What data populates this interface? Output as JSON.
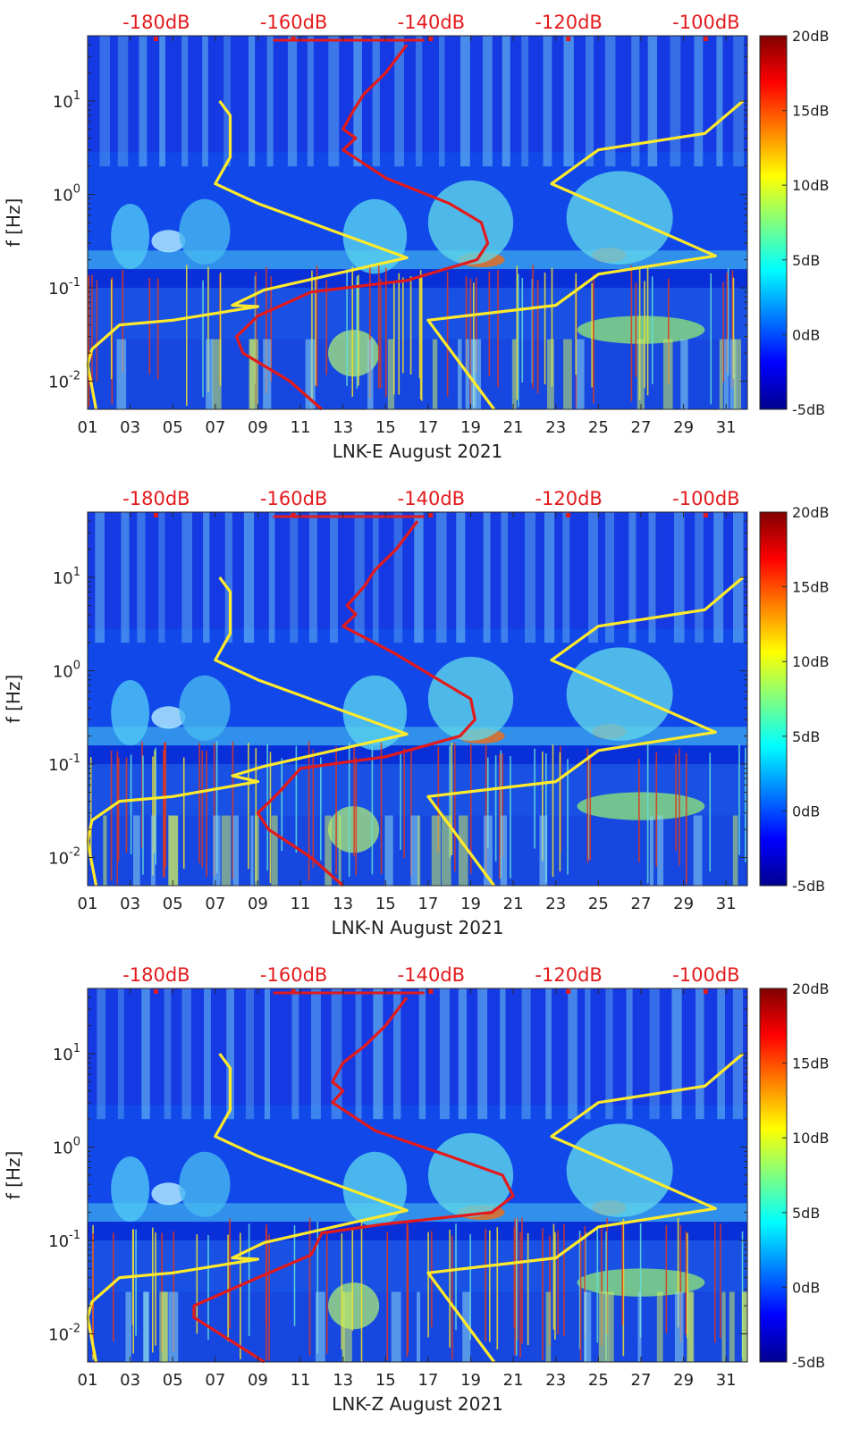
{
  "chart_data": [
    {
      "type": "heatmap",
      "subtitle": "LNK-E August 2021",
      "ylabel": "f [Hz]",
      "x_tick_labels": [
        "01",
        "03",
        "05",
        "07",
        "09",
        "11",
        "13",
        "15",
        "17",
        "19",
        "21",
        "23",
        "25",
        "27",
        "29",
        "31"
      ],
      "xlim": [
        1,
        32
      ],
      "y_scale": "log",
      "ylim": [
        0.005,
        50
      ],
      "y_tick_labels": [
        "10^1",
        "10^0",
        "10^-1",
        "10^-2"
      ],
      "top_axis_labels": [
        "-180dB",
        "-160dB",
        "-140dB",
        "-120dB",
        "-100dB"
      ],
      "top_axis_values": [
        -180,
        -160,
        -140,
        -120,
        -100
      ],
      "top_axis_range": [
        -190,
        -94
      ],
      "colorbar": {
        "labels": [
          "20dB",
          "15dB",
          "10dB",
          "5dB",
          "0dB",
          "-5dB"
        ],
        "range": [
          -5,
          20
        ]
      },
      "series": [
        {
          "color": "#ffea2b",
          "points": [
            [
              7.2,
              10
            ],
            [
              7.7,
              7
            ],
            [
              7.7,
              2.5
            ],
            [
              7.0,
              1.3
            ],
            [
              9.0,
              0.8
            ],
            [
              16.0,
              0.21
            ],
            [
              9.3,
              0.095
            ],
            [
              7.8,
              0.065
            ],
            [
              9.0,
              0.063
            ],
            [
              5.0,
              0.045
            ],
            [
              2.5,
              0.04
            ],
            [
              1.2,
              0.022
            ],
            [
              1.0,
              0.015
            ],
            [
              1.4,
              0.005
            ]
          ]
        },
        {
          "color": "#ffea2b",
          "points": [
            [
              31.8,
              10
            ],
            [
              30.0,
              4.5
            ],
            [
              25.0,
              3.0
            ],
            [
              22.8,
              1.3
            ],
            [
              30.5,
              0.22
            ],
            [
              25.0,
              0.14
            ],
            [
              23.0,
              0.065
            ],
            [
              17.0,
              0.045
            ],
            [
              20.1,
              0.005
            ]
          ]
        },
        {
          "color": "#e31a1c",
          "points": [
            [
              16.0,
              40
            ],
            [
              15.0,
              20
            ],
            [
              14.0,
              12
            ],
            [
              13.5,
              8
            ],
            [
              13.0,
              5
            ],
            [
              13.6,
              4
            ],
            [
              13.0,
              3
            ],
            [
              15.0,
              1.5
            ],
            [
              18.0,
              0.8
            ],
            [
              19.5,
              0.5
            ],
            [
              19.8,
              0.3
            ],
            [
              19.3,
              0.2
            ],
            [
              16.0,
              0.12
            ],
            [
              11.5,
              0.09
            ],
            [
              9.0,
              0.05
            ],
            [
              8.0,
              0.03
            ],
            [
              8.3,
              0.02
            ],
            [
              10.5,
              0.01
            ],
            [
              12.0,
              0.005
            ]
          ]
        }
      ]
    },
    {
      "type": "heatmap",
      "subtitle": "LNK-N August 2021",
      "ylabel": "f [Hz]",
      "x_tick_labels": [
        "01",
        "03",
        "05",
        "07",
        "09",
        "11",
        "13",
        "15",
        "17",
        "19",
        "21",
        "23",
        "25",
        "27",
        "29",
        "31"
      ],
      "xlim": [
        1,
        32
      ],
      "y_scale": "log",
      "ylim": [
        0.005,
        50
      ],
      "y_tick_labels": [
        "10^1",
        "10^0",
        "10^-1",
        "10^-2"
      ],
      "top_axis_labels": [
        "-180dB",
        "-160dB",
        "-140dB",
        "-120dB",
        "-100dB"
      ],
      "top_axis_values": [
        -180,
        -160,
        -140,
        -120,
        -100
      ],
      "top_axis_range": [
        -190,
        -94
      ],
      "colorbar": {
        "labels": [
          "20dB",
          "15dB",
          "10dB",
          "5dB",
          "0dB",
          "-5dB"
        ],
        "range": [
          -5,
          20
        ]
      },
      "series": [
        {
          "color": "#ffea2b",
          "points": [
            [
              7.2,
              10
            ],
            [
              7.7,
              7
            ],
            [
              7.7,
              2.5
            ],
            [
              7.0,
              1.3
            ],
            [
              9.0,
              0.8
            ],
            [
              16.0,
              0.21
            ],
            [
              9.3,
              0.095
            ],
            [
              7.8,
              0.075
            ],
            [
              9.0,
              0.065
            ],
            [
              5.0,
              0.045
            ],
            [
              2.5,
              0.04
            ],
            [
              1.2,
              0.025
            ],
            [
              1.0,
              0.015
            ],
            [
              1.4,
              0.005
            ]
          ]
        },
        {
          "color": "#ffea2b",
          "points": [
            [
              31.8,
              10
            ],
            [
              30.0,
              4.5
            ],
            [
              25.0,
              3.0
            ],
            [
              22.8,
              1.3
            ],
            [
              30.5,
              0.22
            ],
            [
              25.0,
              0.14
            ],
            [
              23.0,
              0.065
            ],
            [
              17.0,
              0.045
            ],
            [
              20.1,
              0.005
            ]
          ]
        },
        {
          "color": "#e31a1c",
          "points": [
            [
              16.5,
              40
            ],
            [
              15.5,
              20
            ],
            [
              14.5,
              12
            ],
            [
              14.0,
              8
            ],
            [
              13.2,
              5
            ],
            [
              13.6,
              4
            ],
            [
              13.0,
              3
            ],
            [
              15.5,
              1.5
            ],
            [
              17.5,
              0.8
            ],
            [
              19.0,
              0.5
            ],
            [
              19.2,
              0.3
            ],
            [
              18.5,
              0.2
            ],
            [
              15.0,
              0.12
            ],
            [
              11.0,
              0.09
            ],
            [
              10.0,
              0.05
            ],
            [
              9.0,
              0.03
            ],
            [
              9.5,
              0.02
            ],
            [
              11.5,
              0.01
            ],
            [
              13.0,
              0.005
            ]
          ]
        }
      ]
    },
    {
      "type": "heatmap",
      "subtitle": "LNK-Z August 2021",
      "ylabel": "f [Hz]",
      "x_tick_labels": [
        "01",
        "03",
        "05",
        "07",
        "09",
        "11",
        "13",
        "15",
        "17",
        "19",
        "21",
        "23",
        "25",
        "27",
        "29",
        "31"
      ],
      "xlim": [
        1,
        32
      ],
      "y_scale": "log",
      "ylim": [
        0.005,
        50
      ],
      "y_tick_labels": [
        "10^1",
        "10^0",
        "10^-1",
        "10^-2"
      ],
      "top_axis_labels": [
        "-180dB",
        "-160dB",
        "-140dB",
        "-120dB",
        "-100dB"
      ],
      "top_axis_values": [
        -180,
        -160,
        -140,
        -120,
        -100
      ],
      "top_axis_range": [
        -190,
        -94
      ],
      "colorbar": {
        "labels": [
          "20dB",
          "15dB",
          "10dB",
          "5dB",
          "0dB",
          "-5dB"
        ],
        "range": [
          -5,
          20
        ]
      },
      "series": [
        {
          "color": "#ffea2b",
          "points": [
            [
              7.2,
              10
            ],
            [
              7.7,
              7
            ],
            [
              7.7,
              2.5
            ],
            [
              7.0,
              1.3
            ],
            [
              9.0,
              0.8
            ],
            [
              16.0,
              0.21
            ],
            [
              9.3,
              0.095
            ],
            [
              7.8,
              0.065
            ],
            [
              9.0,
              0.063
            ],
            [
              5.0,
              0.045
            ],
            [
              2.5,
              0.04
            ],
            [
              1.2,
              0.022
            ],
            [
              1.0,
              0.015
            ],
            [
              1.4,
              0.005
            ]
          ]
        },
        {
          "color": "#ffea2b",
          "points": [
            [
              31.8,
              10
            ],
            [
              30.0,
              4.5
            ],
            [
              25.0,
              3.0
            ],
            [
              22.8,
              1.3
            ],
            [
              30.5,
              0.22
            ],
            [
              25.0,
              0.14
            ],
            [
              23.0,
              0.065
            ],
            [
              17.0,
              0.045
            ],
            [
              20.1,
              0.005
            ]
          ]
        },
        {
          "color": "#e31a1c",
          "points": [
            [
              16.0,
              40
            ],
            [
              15.0,
              20
            ],
            [
              14.0,
              12
            ],
            [
              13.0,
              8
            ],
            [
              12.5,
              5
            ],
            [
              13.0,
              4
            ],
            [
              12.5,
              3
            ],
            [
              14.5,
              1.5
            ],
            [
              18.0,
              0.8
            ],
            [
              20.5,
              0.5
            ],
            [
              21.0,
              0.3
            ],
            [
              20.0,
              0.2
            ],
            [
              15.0,
              0.15
            ],
            [
              12.0,
              0.12
            ],
            [
              11.5,
              0.07
            ],
            [
              9.0,
              0.04
            ],
            [
              6.0,
              0.02
            ],
            [
              6.0,
              0.015
            ],
            [
              9.3,
              0.005
            ]
          ]
        }
      ]
    }
  ]
}
